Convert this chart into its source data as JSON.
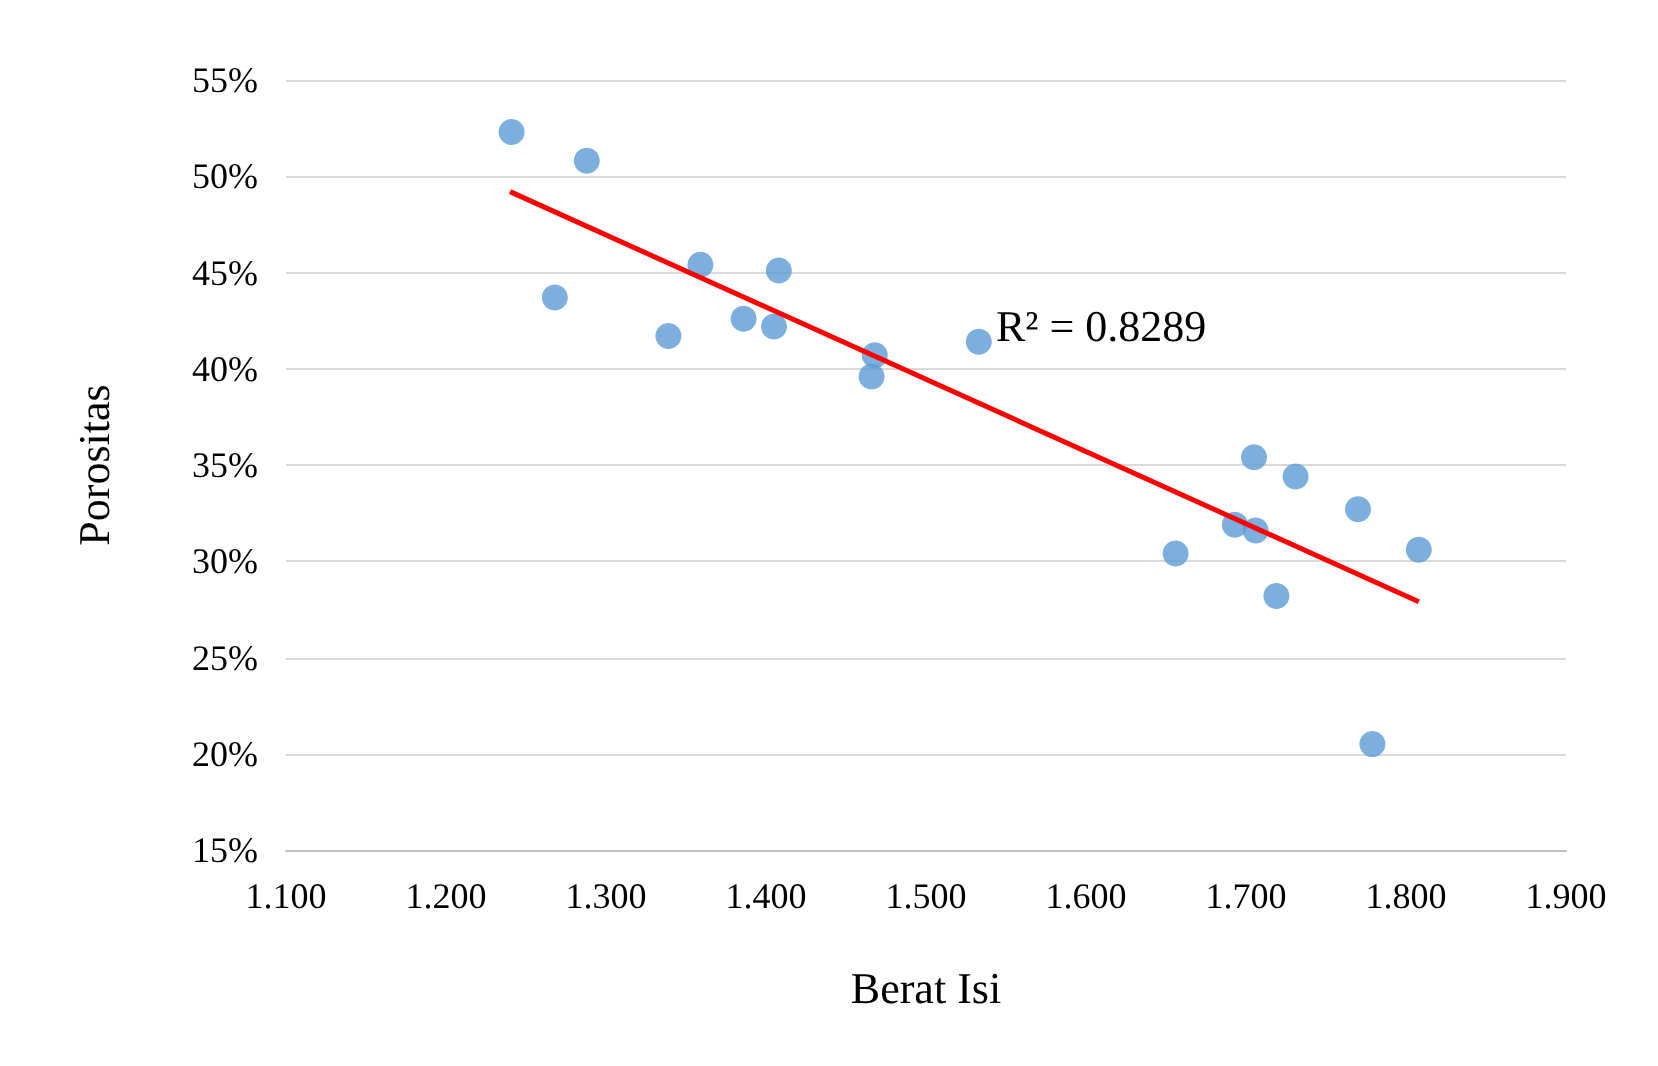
{
  "chart_data": {
    "type": "scatter",
    "xlabel": "Berat Isi",
    "ylabel": "Porositas",
    "xlim": [
      1.1,
      1.9
    ],
    "xticks": [
      {
        "value": 1.1,
        "label": "1.100"
      },
      {
        "value": 1.2,
        "label": "1.200"
      },
      {
        "value": 1.3,
        "label": "1.300"
      },
      {
        "value": 1.4,
        "label": "1.400"
      },
      {
        "value": 1.5,
        "label": "1.500"
      },
      {
        "value": 1.6,
        "label": "1.600"
      },
      {
        "value": 1.7,
        "label": "1.700"
      },
      {
        "value": 1.8,
        "label": "1.800"
      },
      {
        "value": 1.9,
        "label": "1.900"
      }
    ],
    "ylim": [
      15,
      55
    ],
    "yticks": [
      {
        "value": 15,
        "label": "15%"
      },
      {
        "value": 20,
        "label": "20%"
      },
      {
        "value": 25,
        "label": "25%"
      },
      {
        "value": 30,
        "label": "30%"
      },
      {
        "value": 35,
        "label": "35%"
      },
      {
        "value": 40,
        "label": "40%"
      },
      {
        "value": 45,
        "label": "45%"
      },
      {
        "value": 50,
        "label": "50%"
      },
      {
        "value": 55,
        "label": "55%"
      }
    ],
    "grid": "y",
    "marker": "circle",
    "annotations": [
      "R² = 0.8289"
    ],
    "series": [
      {
        "color": "#5b9bd5",
        "x": [
          1.241,
          1.288,
          1.268,
          1.359,
          1.339,
          1.386,
          1.405,
          1.408,
          1.468,
          1.466,
          1.533,
          1.656,
          1.693,
          1.706,
          1.705,
          1.731,
          1.719,
          1.77,
          1.808,
          1.779
        ],
        "values": [
          52.3,
          50.8,
          43.7,
          45.4,
          41.7,
          42.6,
          42.2,
          45.1,
          40.7,
          39.6,
          41.4,
          30.4,
          31.9,
          31.6,
          35.4,
          34.4,
          28.2,
          32.7,
          30.6,
          20.5
        ]
      },
      {
        "type": "line",
        "color": "#ff0000",
        "line_style": "solid",
        "marker": "none",
        "x": [
          1.24,
          1.808
        ],
        "values": [
          49.2,
          27.9
        ]
      }
    ]
  }
}
